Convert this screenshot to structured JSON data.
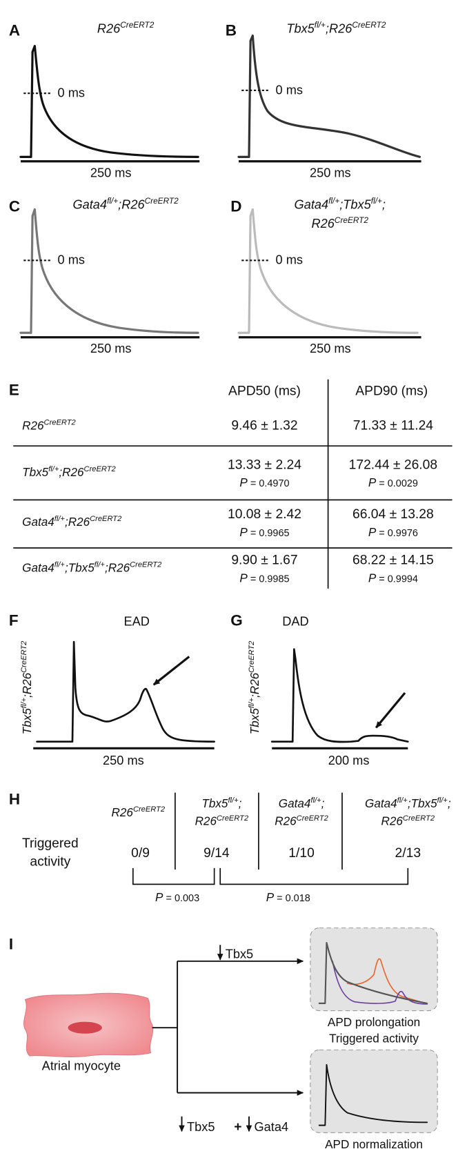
{
  "panels": [
    {
      "letter": "A",
      "title": [
        [
          [
            "R26",
            "CreERT2"
          ]
        ]
      ],
      "zero_label": "0 ms",
      "scale_label": "250 ms"
    },
    {
      "letter": "B",
      "title": [
        [
          [
            "Tbx5",
            "fl/+"
          ],
          [
            ";R26",
            "CreERT2"
          ]
        ]
      ],
      "zero_label": "0 ms",
      "scale_label": "250 ms"
    },
    {
      "letter": "C",
      "title": [
        [
          [
            "Gata4",
            "fl/+"
          ],
          [
            ";R26",
            "CreERT2"
          ]
        ]
      ],
      "zero_label": "0 ms",
      "scale_label": "250 ms"
    },
    {
      "letter": "D",
      "title": [
        [
          [
            "Gata4",
            "fl/+"
          ],
          [
            ";Tbx5",
            "fl/+"
          ],
          [
            ";"
          ]
        ],
        [
          [
            "R26",
            "CreERT2"
          ]
        ]
      ],
      "zero_label": "0 ms",
      "scale_label": "250 ms"
    }
  ],
  "table": {
    "letter": "E",
    "headers": [
      "APD50 (ms)",
      "APD90 (ms)"
    ],
    "rows": [
      {
        "genotype": [
          [
            "R26",
            "CreERT2"
          ]
        ],
        "apd50": "9.46 ± 1.32",
        "apd90": "71.33 ± 11.24"
      },
      {
        "genotype": [
          [
            "Tbx5",
            "fl/+"
          ],
          [
            ";R26",
            "CreERT2"
          ]
        ],
        "apd50": "13.33 ± 2.24",
        "p50": [
          "P",
          " = 0.4970"
        ],
        "apd90": "172.44 ± 26.08",
        "p90": [
          "P",
          " = 0.0029"
        ]
      },
      {
        "genotype": [
          [
            "Gata4",
            "fl/+"
          ],
          [
            ";R26",
            "CreERT2"
          ]
        ],
        "apd50": "10.08 ± 2.42",
        "p50": [
          "P",
          " = 0.9965"
        ],
        "apd90": "66.04 ± 13.28",
        "p90": [
          "P",
          " = 0.9976"
        ]
      },
      {
        "genotype": [
          [
            "Gata4",
            "fl/+"
          ],
          [
            ";Tbx5",
            "fl/+"
          ],
          [
            ";R26",
            "CreERT2"
          ]
        ],
        "apd50": "9.90 ± 1.67",
        "p50": [
          "P",
          " = 0.9985"
        ],
        "apd90": "68.22 ± 14.15",
        "p90": [
          "P",
          " = 0.9994"
        ]
      }
    ]
  },
  "traces": [
    {
      "letter": "F",
      "title": "EAD",
      "ylabel": [
        [
          "Tbx5",
          "fl/+"
        ],
        [
          ";R26",
          "CreERT2"
        ]
      ],
      "scale_label": "250 ms"
    },
    {
      "letter": "G",
      "title": "DAD",
      "ylabel": [
        [
          "Tbx5",
          "fl/+"
        ],
        [
          ";R26",
          "CreERT2"
        ]
      ],
      "scale_label": "200 ms"
    }
  ],
  "triggered": {
    "letter": "H",
    "row_label": [
      "Triggered",
      "activity"
    ],
    "columns": [
      {
        "header": [
          [
            [
              "R26",
              "CreERT2"
            ]
          ]
        ],
        "value": "0/9"
      },
      {
        "header": [
          [
            [
              "Tbx5",
              "fl/+"
            ],
            [
              ";"
            ]
          ],
          [
            [
              "R26",
              "CreERT2"
            ]
          ]
        ],
        "value": "9/14"
      },
      {
        "header": [
          [
            [
              "Gata4",
              "fl/+"
            ],
            [
              ";"
            ]
          ],
          [
            [
              "R26",
              "CreERT2"
            ]
          ]
        ],
        "value": "1/10"
      },
      {
        "header": [
          [
            [
              "Gata4",
              "fl/+"
            ],
            [
              ";Tbx5",
              "fl/+"
            ],
            [
              ";"
            ]
          ],
          [
            [
              "R26",
              "CreERT2"
            ]
          ]
        ],
        "value": "2/13"
      }
    ],
    "comparisons": [
      [
        "P",
        " = 0.003"
      ],
      [
        "P",
        " = 0.018"
      ]
    ]
  },
  "model": {
    "letter": "I",
    "cell_label": "Atrial myocyte",
    "branch_top": [
      "Tbx5"
    ],
    "branch_bottom": [
      "Tbx5",
      "+",
      "Gata4"
    ],
    "outcome_top": [
      "APD prolongation",
      "Triggered activity"
    ],
    "outcome_bottom": "APD normalization"
  }
}
